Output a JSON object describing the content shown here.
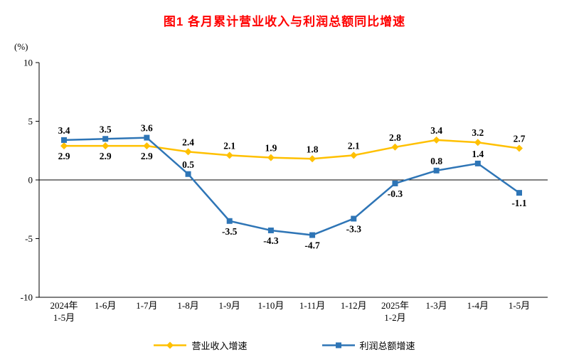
{
  "title": "图1 各月累计营业收入与利润总额同比增速",
  "y_axis_unit": "(%)",
  "colors": {
    "title": "#FF0000",
    "axis": "#000000",
    "revenue_series": "#FFC000",
    "profit_series": "#2E75B6"
  },
  "chart_data": {
    "type": "line",
    "title": "图1 各月累计营业收入与利润总额同比增速",
    "ylabel": "(%)",
    "ylim": [
      -10,
      10
    ],
    "yticks": [
      10,
      5,
      0,
      -5,
      -10
    ],
    "grid": false,
    "legend_position": "bottom",
    "categories": [
      "2024年\n1-5月",
      "1-6月",
      "1-7月",
      "1-8月",
      "1-9月",
      "1-10月",
      "1-11月",
      "1-12月",
      "2025年\n1-2月",
      "1-3月",
      "1-4月",
      "1-5月"
    ],
    "series": [
      {
        "name": "营业收入增速",
        "color": "#FFC000",
        "marker": "diamond",
        "values": [
          2.9,
          2.9,
          2.9,
          2.4,
          2.1,
          1.9,
          1.8,
          2.1,
          2.8,
          3.4,
          3.2,
          2.7
        ],
        "label_positions": [
          "below",
          "below",
          "below",
          "above",
          "above",
          "above",
          "above",
          "above",
          "above",
          "above",
          "above",
          "above"
        ]
      },
      {
        "name": "利润总额增速",
        "color": "#2E75B6",
        "marker": "square",
        "values": [
          3.4,
          3.5,
          3.6,
          0.5,
          -3.5,
          -4.3,
          -4.7,
          -3.3,
          -0.3,
          0.8,
          1.4,
          -1.1
        ],
        "label_positions": [
          "above",
          "above",
          "above",
          "above",
          "below",
          "below",
          "below",
          "below",
          "below",
          "above",
          "above",
          "below"
        ]
      }
    ]
  }
}
